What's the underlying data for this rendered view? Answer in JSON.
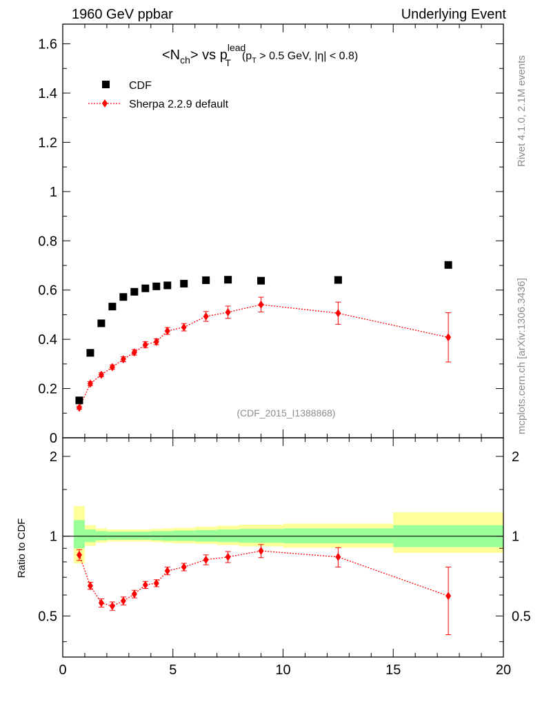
{
  "header": {
    "left": "1960 GeV ppbar",
    "right": "Underlying Event"
  },
  "side_labels": {
    "rivet": "Rivet 4.1.0,  2.1M events",
    "mcplots": "mcplots.cern.ch [arXiv:1306.3436]"
  },
  "colors": {
    "cdf": "#000000",
    "sherpa": "#ff0000",
    "band_inner": "#99ff99",
    "band_outer": "#ffff99"
  },
  "chart_data": [
    {
      "type": "scatter",
      "title": {
        "pre": "<N",
        "sub1": "ch",
        "mid": "> vs p",
        "sup": "lead",
        "sub2": "T",
        "cut_pre": "(p",
        "cut_sub": "T",
        "cut_post": " > 0.5 GeV, |η| < 0.8)"
      },
      "watermark": "(CDF_2015_I1388868)",
      "xlabel": "",
      "ylabel": "",
      "xlim": [
        0,
        20
      ],
      "ylim": [
        0,
        1.68
      ],
      "yticks": [
        "0",
        "0.2",
        "0.4",
        "0.6",
        "0.8",
        "1",
        "1.2",
        "1.4",
        "1.6"
      ],
      "legend": [
        "CDF",
        "Sherpa 2.2.9 default"
      ],
      "series": [
        {
          "name": "CDF",
          "x": [
            0.75,
            1.25,
            1.75,
            2.25,
            2.75,
            3.25,
            3.75,
            4.25,
            4.75,
            5.5,
            6.5,
            7.5,
            9.0,
            12.5,
            17.5
          ],
          "values": [
            0.152,
            0.345,
            0.465,
            0.533,
            0.572,
            0.593,
            0.607,
            0.615,
            0.619,
            0.626,
            0.64,
            0.642,
            0.638,
            0.641,
            0.702
          ]
        },
        {
          "name": "Sherpa 2.2.9 default",
          "x": [
            0.75,
            1.25,
            1.75,
            2.25,
            2.75,
            3.25,
            3.75,
            4.25,
            4.75,
            5.5,
            6.5,
            7.5,
            9.0,
            12.5,
            17.5
          ],
          "values": [
            0.122,
            0.22,
            0.256,
            0.287,
            0.319,
            0.347,
            0.378,
            0.39,
            0.434,
            0.449,
            0.493,
            0.51,
            0.541,
            0.506,
            0.408
          ],
          "errors": [
            0.006,
            0.008,
            0.008,
            0.009,
            0.01,
            0.011,
            0.012,
            0.012,
            0.014,
            0.015,
            0.02,
            0.025,
            0.03,
            0.045,
            0.1
          ]
        }
      ]
    },
    {
      "type": "scatter",
      "title": "",
      "xlabel": "",
      "ylabel": "Ratio to CDF",
      "xlim": [
        0,
        20
      ],
      "ylim": [
        0.35,
        2.35
      ],
      "yscale": "log",
      "xticks": [
        "0",
        "5",
        "10",
        "15",
        "20"
      ],
      "yticks": [
        "0.5",
        "1",
        "2"
      ],
      "reference_line": 1,
      "bands": {
        "edges": [
          0.5,
          1.0,
          1.5,
          2.0,
          2.5,
          3.0,
          3.5,
          4.0,
          4.5,
          5.0,
          6.0,
          7.0,
          8.0,
          10.0,
          15.0,
          20.0
        ],
        "inner_lo": [
          0.9,
          0.95,
          0.965,
          0.97,
          0.97,
          0.97,
          0.97,
          0.965,
          0.96,
          0.96,
          0.955,
          0.95,
          0.945,
          0.94,
          0.91
        ],
        "inner_hi": [
          1.15,
          1.06,
          1.045,
          1.04,
          1.04,
          1.04,
          1.04,
          1.045,
          1.045,
          1.05,
          1.055,
          1.06,
          1.065,
          1.07,
          1.1
        ],
        "outer_lo": [
          0.79,
          0.92,
          0.945,
          0.955,
          0.955,
          0.955,
          0.955,
          0.95,
          0.945,
          0.94,
          0.935,
          0.925,
          0.915,
          0.905,
          0.865
        ],
        "outer_hi": [
          1.3,
          1.1,
          1.07,
          1.06,
          1.06,
          1.06,
          1.06,
          1.065,
          1.07,
          1.075,
          1.085,
          1.095,
          1.105,
          1.115,
          1.23
        ]
      },
      "series": [
        {
          "name": "Sherpa 2.2.9 default",
          "x": [
            0.75,
            1.25,
            1.75,
            2.25,
            2.75,
            3.25,
            3.75,
            4.25,
            4.75,
            5.5,
            6.5,
            7.5,
            9.0,
            12.5,
            17.5
          ],
          "values": [
            0.85,
            0.65,
            0.56,
            0.545,
            0.57,
            0.605,
            0.655,
            0.665,
            0.74,
            0.765,
            0.815,
            0.835,
            0.88,
            0.835,
            0.595
          ],
          "errors": [
            0.04,
            0.02,
            0.02,
            0.02,
            0.02,
            0.02,
            0.02,
            0.02,
            0.025,
            0.025,
            0.035,
            0.04,
            0.05,
            0.07,
            0.17
          ]
        }
      ]
    }
  ]
}
